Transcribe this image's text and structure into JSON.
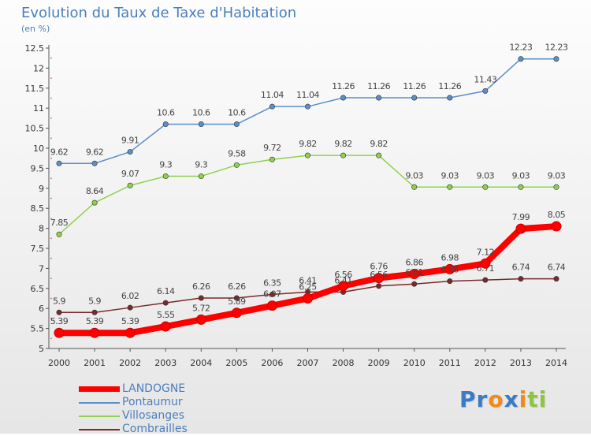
{
  "title": "Evolution du Taux de Taxe d'Habitation",
  "subtitle": "(en %)",
  "logo_letters": [
    {
      "ch": "P",
      "color": "#3a7bc8"
    },
    {
      "ch": "r",
      "color": "#3a7bc8"
    },
    {
      "ch": "o",
      "color": "#f08a1c"
    },
    {
      "ch": "x",
      "color": "#3a7bc8"
    },
    {
      "ch": "i",
      "color": "#f08a1c"
    },
    {
      "ch": "t",
      "color": "#8cc63f"
    },
    {
      "ch": "i",
      "color": "#8cc63f"
    }
  ],
  "chart_data": {
    "type": "line",
    "title": "Evolution du Taux de Taxe d'Habitation",
    "subtitle": "(en %)",
    "x": [
      "2000",
      "2001",
      "2002",
      "2003",
      "2004",
      "2005",
      "2006",
      "2007",
      "2008",
      "2009",
      "2010",
      "2011",
      "2012",
      "2013",
      "2014"
    ],
    "ylim": [
      5,
      12.5
    ],
    "yticks": [
      "5",
      "5.5",
      "6",
      "6.5",
      "7",
      "7.5",
      "8",
      "8.5",
      "9",
      "9.5",
      "10",
      "10.5",
      "11",
      "11.5",
      "12",
      "12.5"
    ],
    "grid": false,
    "legend_position": "bottom-left",
    "series": [
      {
        "name": "LANDOGNE",
        "color": "#ff0000",
        "values": [
          5.39,
          5.39,
          5.39,
          5.55,
          5.72,
          5.89,
          6.07,
          6.25,
          6.56,
          6.76,
          6.86,
          6.98,
          7.12,
          7.99,
          8.05
        ],
        "labels": [
          "5.39",
          "5.39",
          "5.39",
          "5.55",
          "5.72",
          "5.89",
          "6.07",
          "6.25",
          "6.56",
          "6.76",
          "6.86",
          "6.98",
          "7.12",
          "7.99",
          "8.05"
        ]
      },
      {
        "name": "Pontaumur",
        "color": "#5b8fc9",
        "values": [
          9.62,
          9.62,
          9.91,
          10.6,
          10.6,
          10.6,
          11.04,
          11.04,
          11.26,
          11.26,
          11.26,
          11.26,
          11.43,
          12.23,
          12.23
        ],
        "labels": [
          "9.62",
          "9.62",
          "9.91",
          "10.6",
          "10.6",
          "10.6",
          "11.04",
          "11.04",
          "11.26",
          "11.26",
          "11.26",
          "11.26",
          "11.43",
          "12.23",
          "12.23"
        ]
      },
      {
        "name": "Villosanges",
        "color": "#8fd14f",
        "values": [
          7.85,
          8.64,
          9.07,
          9.3,
          9.3,
          9.58,
          9.72,
          9.82,
          9.82,
          9.82,
          9.03,
          9.03,
          9.03,
          9.03,
          9.03
        ],
        "labels": [
          "7.85",
          "8.64",
          "9.07",
          "9.3",
          "9.3",
          "9.58",
          "9.72",
          "9.82",
          "9.82",
          "9.82",
          "9.03",
          "9.03",
          "9.03",
          "9.03",
          "9.03"
        ]
      },
      {
        "name": "Combrailles",
        "color": "#7a2a2a",
        "values": [
          5.9,
          5.9,
          6.02,
          6.14,
          6.26,
          6.26,
          6.35,
          6.41,
          6.41,
          6.56,
          6.61,
          6.68,
          6.71,
          6.74,
          6.74
        ],
        "labels": [
          "5.9",
          "5.9",
          "6.02",
          "6.14",
          "6.26",
          "6.26",
          "6.35",
          "6.41",
          "6.41",
          "6.56",
          "6.61",
          "6.68",
          "6.71",
          "6.74",
          "6.74"
        ]
      }
    ]
  }
}
